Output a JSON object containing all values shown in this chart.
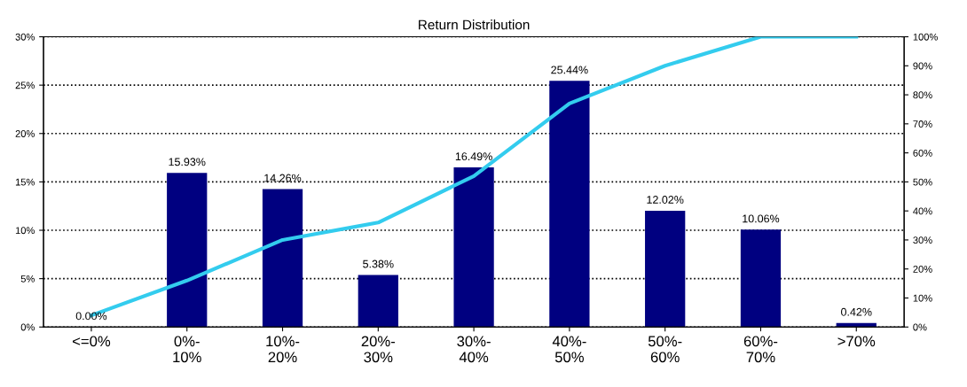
{
  "chart_data": {
    "type": "bar",
    "title": "Return Distribution",
    "categories": [
      "<=0%",
      "0%-\n10%",
      "10%-\n20%",
      "20%-\n30%",
      "30%-\n40%",
      "40%-\n50%",
      "50%-\n60%",
      "60%-\n70%",
      ">70%"
    ],
    "series": [
      {
        "color": "#000080",
        "values": [
          0.0,
          15.93,
          14.26,
          5.38,
          16.49,
          25.44,
          12.02,
          10.06,
          0.42
        ],
        "value_labels": [
          "0.00%",
          "15.93%",
          "14.26%",
          "5.38%",
          "16.49%",
          "25.44%",
          "12.02%",
          "10.06%",
          "0.42%"
        ]
      },
      {
        "type": "line",
        "axis": "y2",
        "color": "#33ccee",
        "line_style": "solid",
        "values": [
          4,
          16,
          30,
          36,
          52,
          77,
          90,
          100,
          100
        ]
      }
    ],
    "ylim": [
      0,
      30
    ],
    "yticks": [
      {
        "value": 0,
        "label": "0%"
      },
      {
        "value": 5,
        "label": "5%"
      },
      {
        "value": 10,
        "label": "10%"
      },
      {
        "value": 15,
        "label": "15%"
      },
      {
        "value": 20,
        "label": "20%"
      },
      {
        "value": 25,
        "label": "25%"
      },
      {
        "value": 30,
        "label": "30%"
      }
    ],
    "y2lim": [
      0,
      100
    ],
    "y2ticks": [
      {
        "value": 0,
        "label": "0%"
      },
      {
        "value": 10,
        "label": "10%"
      },
      {
        "value": 20,
        "label": "20%"
      },
      {
        "value": 30,
        "label": "30%"
      },
      {
        "value": 40,
        "label": "40%"
      },
      {
        "value": 50,
        "label": "50%"
      },
      {
        "value": 60,
        "label": "60%"
      },
      {
        "value": 70,
        "label": "70%"
      },
      {
        "value": 80,
        "label": "80%"
      },
      {
        "value": 90,
        "label": "90%"
      },
      {
        "value": 100,
        "label": "100%"
      }
    ],
    "grid": "y"
  }
}
